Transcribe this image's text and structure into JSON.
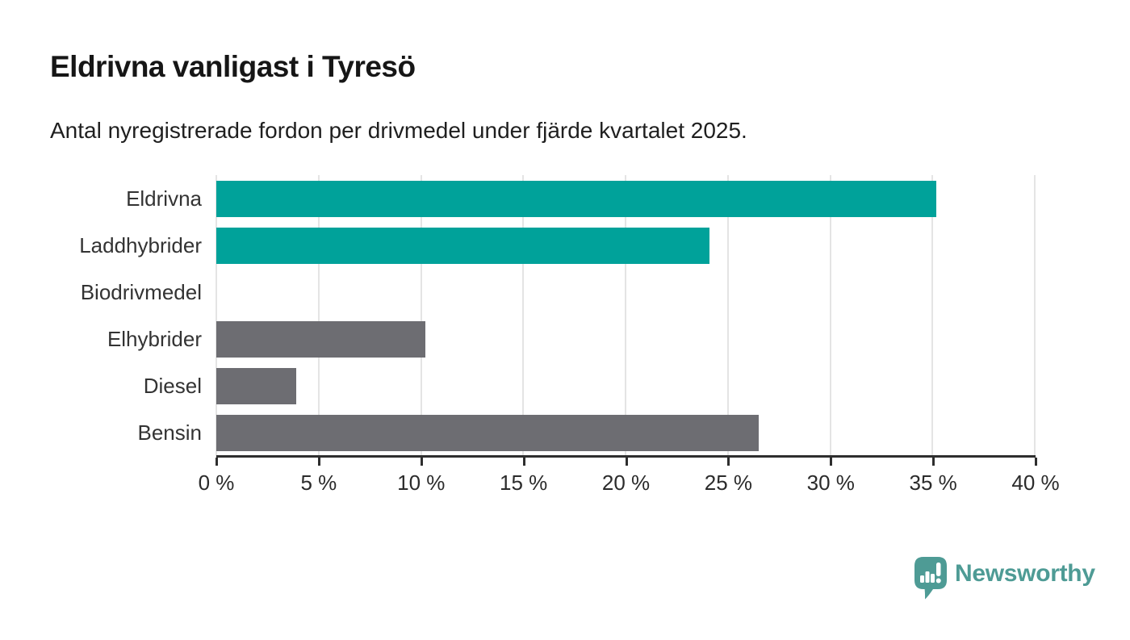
{
  "header": {
    "title": "Eldrivna vanligast i Tyresö",
    "subtitle": "Antal nyregistrerade fordon per drivmedel under fjärde kvartalet 2025."
  },
  "chart_data": {
    "type": "bar",
    "orientation": "horizontal",
    "title": "Eldrivna vanligast i Tyresö",
    "subtitle": "Antal nyregistrerade fordon per drivmedel under fjärde kvartalet 2025.",
    "categories": [
      "Eldrivna",
      "Laddhybrider",
      "Biodrivmedel",
      "Elhybrider",
      "Diesel",
      "Bensin"
    ],
    "values": [
      35.2,
      24.1,
      0,
      10.2,
      3.9,
      26.5
    ],
    "unit": "%",
    "xlabel": "",
    "ylabel": "",
    "xlim": [
      0,
      40
    ],
    "x_ticks": [
      0,
      5,
      10,
      15,
      20,
      25,
      30,
      35,
      40
    ],
    "x_tick_labels": [
      "0 %",
      "5 %",
      "10 %",
      "15 %",
      "20 %",
      "25 %",
      "30 %",
      "35 %",
      "40 %"
    ],
    "grid": "vertical-only",
    "legend": "none",
    "colors": {
      "electric": "#00A29A",
      "other": "#6D6D72"
    },
    "bar_color_keys": [
      "electric",
      "electric",
      "other",
      "other",
      "other",
      "other"
    ],
    "gridline_color": "#E4E4E4",
    "axis_color": "#2E2E2E"
  },
  "branding": {
    "logo_text": "Newsworthy",
    "logo_color": "#4E9B95",
    "logo_icon": "newsworthy-pin-barchart-icon"
  }
}
